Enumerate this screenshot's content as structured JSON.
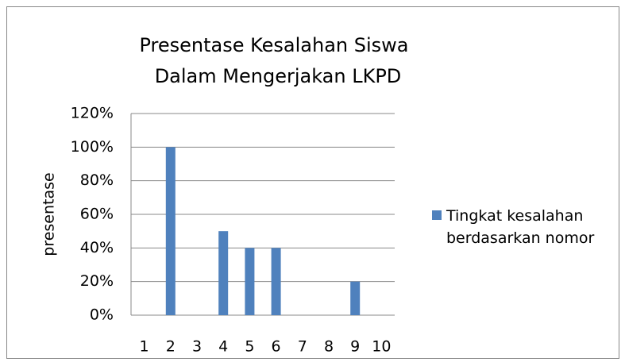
{
  "chart_data": {
    "type": "bar",
    "title": [
      "Presentase Kesalahan Siswa",
      "Dalam Mengerjakan LKPD"
    ],
    "y_label": "presentase",
    "categories": [
      "1",
      "2",
      "3",
      "4",
      "5",
      "6",
      "7",
      "8",
      "9",
      "10"
    ],
    "series": [
      {
        "name": "Tingkat kesalahan berdasarkan nomor",
        "color": "#4f81bd",
        "values": [
          0,
          100,
          0,
          50,
          40,
          40,
          0,
          0,
          20,
          0
        ]
      }
    ],
    "ylim": [
      0,
      120
    ],
    "yticks": [
      {
        "value": 0,
        "label": "0%"
      },
      {
        "value": 20,
        "label": "20%"
      },
      {
        "value": 40,
        "label": "40%"
      },
      {
        "value": 60,
        "label": "60%"
      },
      {
        "value": 80,
        "label": "80%"
      },
      {
        "value": 100,
        "label": "100%"
      },
      {
        "value": 120,
        "label": "120%"
      }
    ],
    "grid": true,
    "legend": "right"
  }
}
